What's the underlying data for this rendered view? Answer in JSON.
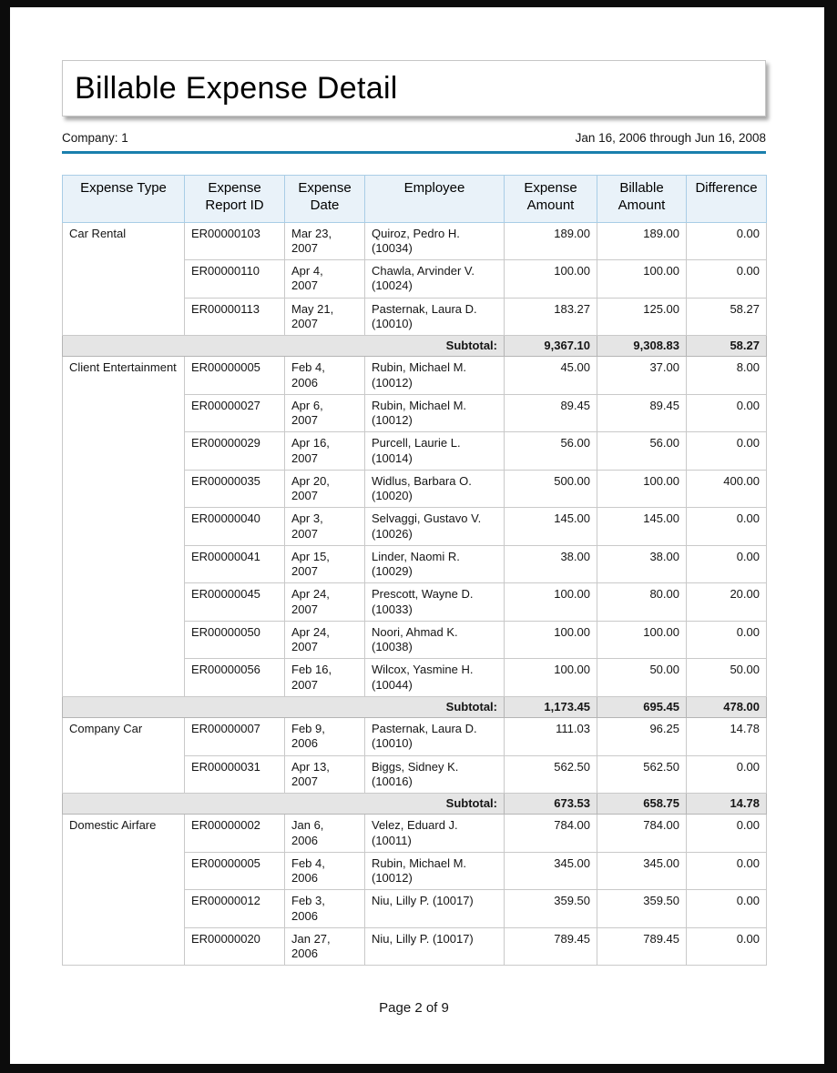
{
  "header": {
    "title": "Billable Expense Detail",
    "company": "Company: 1",
    "date_range": "Jan 16, 2006 through Jun 16, 2008"
  },
  "table": {
    "columns": [
      "Expense Type",
      "Expense Report ID",
      "Expense Date",
      "Employee",
      "Expense Amount",
      "Billable Amount",
      "Difference"
    ],
    "subtotal_label": "Subtotal:",
    "groups": [
      {
        "type": "Car Rental",
        "rows": [
          {
            "report_id": "ER00000103",
            "date": [
              "Mar 23,",
              "2007"
            ],
            "employee": "Quiroz, Pedro H. (10034)",
            "expense": "189.00",
            "billable": "189.00",
            "difference": "0.00"
          },
          {
            "report_id": "ER00000110",
            "date": [
              "Apr 4,",
              "2007"
            ],
            "employee": "Chawla, Arvinder V. (10024)",
            "expense": "100.00",
            "billable": "100.00",
            "difference": "0.00"
          },
          {
            "report_id": "ER00000113",
            "date": [
              "May 21,",
              "2007"
            ],
            "employee": "Pasternak, Laura D. (10010)",
            "expense": "183.27",
            "billable": "125.00",
            "difference": "58.27"
          }
        ],
        "subtotal": [
          "9,367.10",
          "9,308.83",
          "58.27"
        ]
      },
      {
        "type": "Client Entertainment",
        "rows": [
          {
            "report_id": "ER00000005",
            "date": [
              "Feb 4,",
              "2006"
            ],
            "employee": "Rubin, Michael M. (10012)",
            "expense": "45.00",
            "billable": "37.00",
            "difference": "8.00"
          },
          {
            "report_id": "ER00000027",
            "date": [
              "Apr 6,",
              "2007"
            ],
            "employee": "Rubin, Michael M. (10012)",
            "expense": "89.45",
            "billable": "89.45",
            "difference": "0.00"
          },
          {
            "report_id": "ER00000029",
            "date": [
              "Apr 16,",
              "2007"
            ],
            "employee": "Purcell, Laurie L. (10014)",
            "expense": "56.00",
            "billable": "56.00",
            "difference": "0.00"
          },
          {
            "report_id": "ER00000035",
            "date": [
              "Apr 20,",
              "2007"
            ],
            "employee": "Widlus, Barbara O. (10020)",
            "expense": "500.00",
            "billable": "100.00",
            "difference": "400.00"
          },
          {
            "report_id": "ER00000040",
            "date": [
              "Apr 3,",
              "2007"
            ],
            "employee": "Selvaggi, Gustavo V. (10026)",
            "expense": "145.00",
            "billable": "145.00",
            "difference": "0.00"
          },
          {
            "report_id": "ER00000041",
            "date": [
              "Apr 15,",
              "2007"
            ],
            "employee": "Linder, Naomi R. (10029)",
            "expense": "38.00",
            "billable": "38.00",
            "difference": "0.00"
          },
          {
            "report_id": "ER00000045",
            "date": [
              "Apr 24,",
              "2007"
            ],
            "employee": "Prescott, Wayne D. (10033)",
            "expense": "100.00",
            "billable": "80.00",
            "difference": "20.00"
          },
          {
            "report_id": "ER00000050",
            "date": [
              "Apr 24,",
              "2007"
            ],
            "employee": "Noori, Ahmad K. (10038)",
            "expense": "100.00",
            "billable": "100.00",
            "difference": "0.00"
          },
          {
            "report_id": "ER00000056",
            "date": [
              "Feb 16,",
              "2007"
            ],
            "employee": "Wilcox, Yasmine H. (10044)",
            "expense": "100.00",
            "billable": "50.00",
            "difference": "50.00"
          }
        ],
        "subtotal": [
          "1,173.45",
          "695.45",
          "478.00"
        ]
      },
      {
        "type": "Company Car",
        "rows": [
          {
            "report_id": "ER00000007",
            "date": [
              "Feb 9,",
              "2006"
            ],
            "employee": "Pasternak, Laura D. (10010)",
            "expense": "111.03",
            "billable": "96.25",
            "difference": "14.78"
          },
          {
            "report_id": "ER00000031",
            "date": [
              "Apr 13,",
              "2007"
            ],
            "employee": "Biggs, Sidney K. (10016)",
            "expense": "562.50",
            "billable": "562.50",
            "difference": "0.00"
          }
        ],
        "subtotal": [
          "673.53",
          "658.75",
          "14.78"
        ]
      },
      {
        "type": "Domestic Airfare",
        "rows": [
          {
            "report_id": "ER00000002",
            "date": [
              "Jan 6,",
              "2006"
            ],
            "employee": "Velez, Eduard J. (10011)",
            "expense": "784.00",
            "billable": "784.00",
            "difference": "0.00"
          },
          {
            "report_id": "ER00000005",
            "date": [
              "Feb 4,",
              "2006"
            ],
            "employee": "Rubin, Michael M. (10012)",
            "expense": "345.00",
            "billable": "345.00",
            "difference": "0.00"
          },
          {
            "report_id": "ER00000012",
            "date": [
              "Feb 3,",
              "2006"
            ],
            "employee": "Niu, Lilly P. (10017)",
            "expense": "359.50",
            "billable": "359.50",
            "difference": "0.00"
          },
          {
            "report_id": "ER00000020",
            "date": [
              "Jan 27,",
              "2006"
            ],
            "employee": "Niu, Lilly P. (10017)",
            "expense": "789.45",
            "billable": "789.45",
            "difference": "0.00"
          }
        ],
        "subtotal": null
      }
    ]
  },
  "footer": {
    "page_label": "Page 2 of 9"
  },
  "colors": {
    "accent_line": "#1a7fad",
    "header_bg": "#e9f2f9",
    "header_border": "#a9cde6",
    "subtotal_bg": "#e5e5e5",
    "grid_line": "#c9c9c9",
    "frame": "#0c0c0c"
  }
}
